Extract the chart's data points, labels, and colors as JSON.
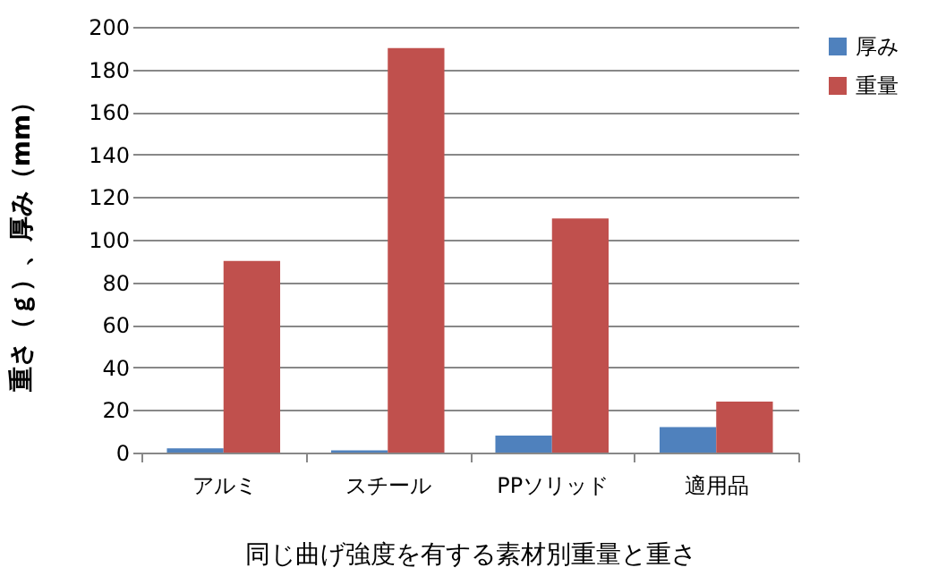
{
  "chart_data": {
    "type": "bar",
    "xlabel": "同じ曲げ強度を有する素材別重量と重さ",
    "ylabel": "重さ（ｇ）、厚み（mm）",
    "categories": [
      "アルミ",
      "スチール",
      "PPソリッド",
      "適用品"
    ],
    "series": [
      {
        "name": "厚み",
        "color": "#4f81bd",
        "values": [
          2,
          1,
          8,
          12
        ]
      },
      {
        "name": "重量",
        "color": "#c0504d",
        "values": [
          90,
          190,
          110,
          24
        ]
      }
    ],
    "ylim": [
      0,
      200
    ],
    "yticks": [
      0,
      20,
      40,
      60,
      80,
      100,
      120,
      140,
      160,
      180,
      200
    ],
    "grid": "y",
    "legend": "top right"
  }
}
